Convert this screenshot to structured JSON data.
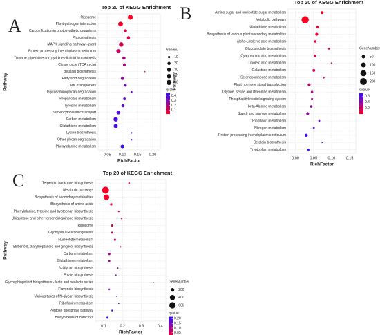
{
  "chart_data": [
    {
      "type": "bubble",
      "label": "A",
      "title": "Top 20 of KEGG Enrichment",
      "x_label": "RichFactor",
      "y_label": "Pathway",
      "categories": [
        "Ribosome",
        "Plant-pathogen interaction",
        "Carbon fixation in photosynthetic organisms",
        "Photosynthesis",
        "MAPK signaling pathway - plant",
        "Protein processing in endoplasmic reticulum",
        "Tropane, piperidine and pyridine alkaloid biosynthesis",
        "Citrate cycle (TCA cycle)",
        "Betalain biosynthesis",
        "Fatty acid degradation",
        "ABC transporters",
        "Glycosaminoglycan degradation",
        "Propanoate metabolism",
        "Tyrosine metabolism",
        "Nucleocytoplasmic transport",
        "Carbon metabolism",
        "Glutathione metabolism",
        "Lysine biosynthesis",
        "Other glycan degradation",
        "Phenylalanine metabolism"
      ],
      "values": [
        0.126,
        0.094,
        0.11,
        0.12,
        0.096,
        0.087,
        0.105,
        0.107,
        0.174,
        0.1,
        0.11,
        0.13,
        0.107,
        0.102,
        0.087,
        0.078,
        0.078,
        0.13,
        0.13,
        0.1
      ],
      "sizes": [
        50,
        45,
        20,
        20,
        40,
        35,
        20,
        20,
        3,
        20,
        15,
        8,
        15,
        20,
        30,
        40,
        35,
        5,
        5,
        25
      ],
      "qvalues": [
        0.02,
        0.05,
        0.1,
        0.1,
        0.12,
        0.15,
        0.2,
        0.2,
        0.05,
        0.25,
        0.3,
        0.35,
        0.35,
        0.35,
        0.38,
        0.4,
        0.4,
        0.42,
        0.44,
        0.44
      ],
      "xlim": [
        0.02,
        0.225
      ],
      "xticks": [
        0.05,
        {
          "value": 0.1,
          "label": "0.10"
        },
        0.15,
        {
          "value": 0.2,
          "label": "0.20"
        }
      ],
      "size_legend": {
        "title": "Genenu",
        "ticks": [
          10,
          20,
          30,
          40,
          50
        ]
      },
      "color_legend": {
        "title": "qvalue",
        "lim": [
          0.02,
          0.45
        ],
        "ticks": [
          0.1,
          0.2,
          0.3,
          0.4
        ],
        "colors": [
          "#ff0022",
          "#3311ff"
        ]
      },
      "grid": true
    },
    {
      "type": "bubble",
      "label": "B",
      "title": "Top 20 of KEGG Enrichment",
      "x_label": "RichFactor",
      "y_label": "Pathway",
      "categories": [
        "Amino sugar and nucleotide sugar metabolism",
        "Metabolic pathways",
        "Glutathione metabolism",
        "Biosynthesis of various plant secondary metabolites",
        "alpha-Linolenic acid metabolism",
        "Glucosinolate biosynthesis",
        "Cyanoamino acid metabolism",
        "Linoleic acid metabolism",
        "Galactose metabolism",
        "Selenocompound metabolism",
        "Plant hormone signal transduction",
        "Glycine, serine and threonine metabolism",
        "Phosphatidylinositol signaling system",
        "beta-Alanine metabolism",
        "Starch and sucrose metabolism",
        "Riboflavin metabolism",
        "Nitrogen metabolism",
        "Protein processing in endoplasmic reticulum",
        "Betalain biosynthesis",
        "Tryptophan metabolism"
      ],
      "values": [
        0.074,
        0.027,
        0.061,
        0.059,
        0.055,
        0.093,
        0.055,
        0.1,
        0.051,
        0.078,
        0.038,
        0.046,
        0.046,
        0.044,
        0.034,
        0.066,
        0.051,
        0.03,
        0.074,
        0.036
      ],
      "sizes": [
        30,
        220,
        30,
        35,
        25,
        15,
        25,
        10,
        30,
        15,
        35,
        25,
        20,
        25,
        35,
        15,
        20,
        40,
        5,
        20
      ],
      "qvalues": [
        0.02,
        0.0,
        0.05,
        0.05,
        0.08,
        0.1,
        0.12,
        0.15,
        0.18,
        0.2,
        0.25,
        0.3,
        0.35,
        0.38,
        0.4,
        0.5,
        0.55,
        0.6,
        0.65,
        0.7
      ],
      "xlim": [
        -0.02,
        0.167
      ],
      "xticks": [
        {
          "value": 0,
          "label": "0.00"
        },
        0.05,
        {
          "value": 0.1,
          "label": "0.10"
        },
        0.15
      ],
      "size_legend": {
        "title": "GeneNumber",
        "ticks": [
          50,
          100,
          150,
          200
        ]
      },
      "color_legend": {
        "title": "qvalue",
        "lim": [
          0,
          0.7
        ],
        "ticks": [
          0.2,
          0.4,
          0.6
        ],
        "colors": [
          "#ff0022",
          "#3311ff"
        ]
      },
      "grid": true
    },
    {
      "type": "bubble",
      "label": "C",
      "title": "Top 20 of KEGG Enrichment",
      "x_label": "RichFactor",
      "y_label": "Pathway",
      "categories": [
        "Terpenoid backbone biosynthesis",
        "Metabolic pathways",
        "Biosynthesis of secondary metabolites",
        "Biosynthesis of amino acids",
        "Phenylalanine, tyrosine and tryptophan biosynthesis",
        "Ubiquinone and other terpenoid-quinone biosynthesis",
        "Ribosome",
        "Glycolysis / Gluconeogenesis",
        "Nucleotide metabolism",
        "Stilbenoid, diarylheptanoid and gingerol biosynthesis",
        "Carbon metabolism",
        "Glutathione metabolism",
        "N-Glycan biosynthesis",
        "Folate biosynthesis",
        "Glycosphingolipid biosynthesis - lacto and neolacto series",
        "Flavonoid biosynthesis",
        "Various types of N-glycan biosynthesis",
        "Riboflavin metabolism",
        "Pentose phosphate pathway",
        "Biosynthesis of cofactors"
      ],
      "values": [
        0.235,
        0.11,
        0.115,
        0.14,
        0.18,
        0.195,
        0.145,
        0.145,
        0.16,
        0.19,
        0.13,
        0.13,
        0.175,
        0.165,
        0.365,
        0.13,
        0.17,
        0.18,
        0.145,
        0.12
      ],
      "sizes": [
        40,
        700,
        450,
        80,
        40,
        30,
        70,
        60,
        70,
        30,
        80,
        60,
        30,
        30,
        5,
        40,
        20,
        20,
        40,
        60
      ],
      "qvalues": [
        0.01,
        0.005,
        0.008,
        0.02,
        0.03,
        0.04,
        0.05,
        0.06,
        0.07,
        0.08,
        0.09,
        0.1,
        0.12,
        0.13,
        0.14,
        0.15,
        0.17,
        0.18,
        0.2,
        0.21
      ],
      "xlim": [
        0.056,
        0.43
      ],
      "xticks": [
        0.1,
        0.2,
        0.3,
        0.4
      ],
      "size_legend": {
        "title": "GeneNumber",
        "ticks": [
          200,
          400,
          600
        ]
      },
      "color_legend": {
        "title": "qvalue",
        "lim": [
          0,
          0.22
        ],
        "ticks": [
          0.05,
          {
            "value": 0.1,
            "label": "0.10"
          },
          0.15,
          {
            "value": 0.2,
            "label": "0.20"
          }
        ],
        "colors": [
          "#ff0022",
          "#3311ff"
        ]
      },
      "grid": true
    }
  ]
}
